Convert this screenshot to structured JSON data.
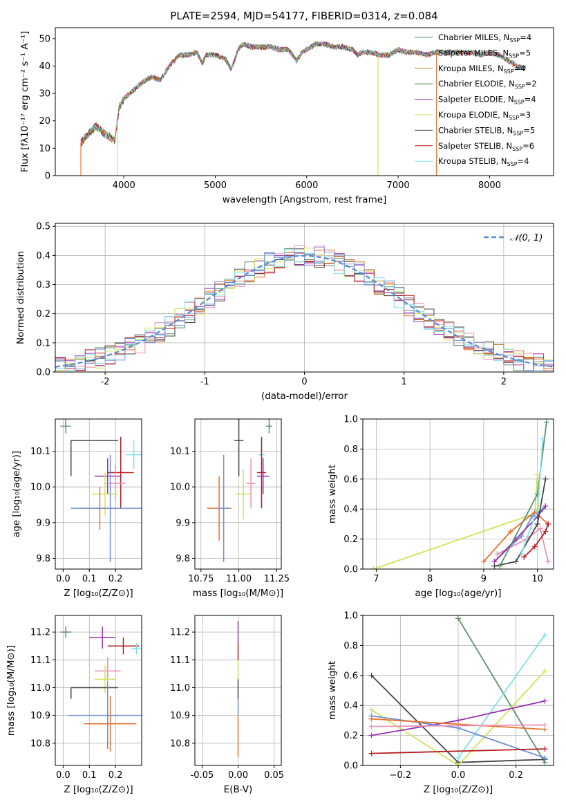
{
  "figure": {
    "title": "PLATE=2594, MJD=54177, FIBERID=0314, z=0.084"
  },
  "colors": {
    "Chabrier MILES": "#5d8f6b",
    "Salpeter MILES": "#9b59b6",
    "Kroupa MILES": "#c87f1a",
    "Chabrier ELODIE": "#3b7a3b",
    "Salpeter ELODIE": "#9b30b0",
    "Kroupa ELODIE": "#d4e157",
    "Chabrier STELIB": "#444444",
    "Salpeter STELIB": "#b71c1c",
    "Kroupa STELIB": "#80deea",
    "gaussian": "#5b8ed6",
    "orange": "#e8712a",
    "pink": "#e88fb8",
    "blue": "#6f8fd8"
  },
  "chart_data": [
    {
      "id": "spectrum",
      "type": "line",
      "xlabel": "wavelength [Angstrom, rest frame]",
      "ylabel": "Flux [fλ10⁻¹⁷ erg cm⁻² s⁻¹ A⁻¹]",
      "xlim": [
        3250,
        8700
      ],
      "ylim": [
        0,
        54
      ],
      "xticks": [
        4000,
        5000,
        6000,
        7000,
        8000
      ],
      "yticks": [
        0,
        10,
        20,
        30,
        40,
        50
      ],
      "grid": false,
      "legend_position": "top-right",
      "spectrum_knots": {
        "x": [
          3530,
          3600,
          3700,
          3800,
          3900,
          3950,
          4000,
          4100,
          4200,
          4300,
          4400,
          4500,
          4600,
          4700,
          4800,
          4860,
          4900,
          5000,
          5100,
          5175,
          5250,
          5300,
          5400,
          5500,
          5600,
          5700,
          5800,
          5890,
          5950,
          6000,
          6100,
          6200,
          6300,
          6400,
          6500,
          6563,
          6600,
          6700,
          6800,
          6900,
          7000,
          7100,
          7200,
          7300,
          7400,
          7500,
          7600,
          7700,
          7800,
          7900,
          8000,
          8100,
          8200,
          8300,
          8400
        ],
        "y": [
          12,
          15,
          18,
          15,
          13,
          25,
          28,
          31,
          34,
          36,
          35,
          40,
          44,
          44,
          45,
          41,
          44,
          44,
          43,
          39,
          46,
          48,
          47,
          47,
          47,
          46,
          46,
          42,
          45,
          46,
          48,
          48,
          47,
          47,
          46,
          44,
          45,
          45,
          44,
          44,
          46,
          45,
          45,
          44,
          45,
          45,
          45,
          45,
          45,
          44,
          45,
          44,
          42,
          40,
          39
        ]
      },
      "series": [
        {
          "name": "Chabrier MILES, Nₛₛₚ=4",
          "label": "Chabrier MILES, N",
          "nssp": "4"
        },
        {
          "name": "Salpeter MILES, Nₛₛₚ=5",
          "label": "Salpeter MILES, N",
          "nssp": "5"
        },
        {
          "name": "Kroupa MILES, Nₛₛₚ=4",
          "label": "Kroupa MILES, N",
          "nssp": "4"
        },
        {
          "name": "Chabrier ELODIE, Nₛₛₚ=2",
          "label": "Chabrier ELODIE, N",
          "nssp": "2"
        },
        {
          "name": "Salpeter ELODIE, Nₛₛₚ=4",
          "label": "Salpeter ELODIE, N",
          "nssp": "4"
        },
        {
          "name": "Kroupa ELODIE, Nₛₛₚ=3",
          "label": "Kroupa ELODIE, N",
          "nssp": "3"
        },
        {
          "name": "Chabrier STELIB, Nₛₛₚ=5",
          "label": "Chabrier STELIB, N",
          "nssp": "5"
        },
        {
          "name": "Salpeter STELIB, Nₛₛₚ=6",
          "label": "Salpeter STELIB, N",
          "nssp": "6"
        },
        {
          "name": "Kroupa STELIB, Nₛₛₚ=4",
          "label": "Kroupa STELIB, N",
          "nssp": "4"
        }
      ],
      "nssp_subscript": "SSP",
      "edge_drops": [
        {
          "x": 3530,
          "color": "orange"
        },
        {
          "x": 3930,
          "color": "Kroupa ELODIE"
        },
        {
          "x": 6780,
          "color": "Kroupa ELODIE"
        },
        {
          "x": 7420,
          "color": "orange"
        }
      ]
    },
    {
      "id": "residuals",
      "type": "step",
      "xlabel": "(data-model)/error",
      "ylabel": "Normed distribution",
      "xlim": [
        -2.5,
        2.5
      ],
      "ylim": [
        0,
        0.51
      ],
      "xticks": [
        -2,
        -1,
        0,
        1,
        2
      ],
      "yticks": [
        0.0,
        0.1,
        0.2,
        0.3,
        0.4,
        0.5
      ],
      "grid": true,
      "legend": "𝒩(0, 1)",
      "legend_position": "top-right",
      "bin_width": 0.1,
      "series_colors": [
        "Chabrier MILES",
        "orange",
        "Chabrier STELIB",
        "Salpeter ELODIE",
        "pink",
        "Kroupa ELODIE",
        "Salpeter STELIB",
        "Kroupa STELIB",
        "blue"
      ]
    },
    {
      "id": "age_vs_Z",
      "type": "errorbar",
      "xlabel": "Z [log₁₀(Z/Z⊙)]",
      "ylabel": "age  [log₁₀(age/yr)]",
      "xlim": [
        -0.03,
        0.3
      ],
      "ylim": [
        9.77,
        10.19
      ],
      "xticks": [
        0.0,
        0.1,
        0.2
      ],
      "yticks": [
        9.8,
        9.9,
        10.0,
        10.1
      ],
      "points": [
        {
          "x": 0.01,
          "y": 10.17,
          "xerr": 0.02,
          "yerr": 0.02,
          "color": "Chabrier MILES"
        },
        {
          "x": 0.03,
          "y": 10.13,
          "xerr": [
            0,
            0.18
          ],
          "yerr": [
            0.1,
            0
          ],
          "color": "Chabrier STELIB"
        },
        {
          "x": 0.17,
          "y": 10.03,
          "xerr": 0.05,
          "yerr": 0.05,
          "color": "Salpeter ELODIE"
        },
        {
          "x": 0.22,
          "y": 10.04,
          "xerr": 0.05,
          "yerr": 0.1,
          "color": "Salpeter STELIB"
        },
        {
          "x": 0.2,
          "y": 10.01,
          "xerr": 0.04,
          "yerr": 0.05,
          "color": "pink"
        },
        {
          "x": 0.27,
          "y": 10.09,
          "xerr": 0.03,
          "yerr": 0.04,
          "color": "Kroupa STELIB"
        },
        {
          "x": 0.16,
          "y": 9.98,
          "xerr": 0.05,
          "yerr": 0.06,
          "color": "Kroupa ELODIE"
        },
        {
          "x": 0.14,
          "y": 9.94,
          "xerr": 0.07,
          "yerr": 0.06,
          "color": "orange"
        },
        {
          "x": 0.18,
          "y": 9.94,
          "xerr": 0.15,
          "yerr": 0.15,
          "color": "blue"
        }
      ]
    },
    {
      "id": "age_vs_mass",
      "type": "errorbar",
      "xlabel": "mass [log₁₀(M/M⊙)]",
      "ylabel": "",
      "xlim": [
        10.71,
        11.28
      ],
      "ylim": [
        9.77,
        10.19
      ],
      "xticks": [
        10.75,
        11.0,
        11.25
      ],
      "yticks": [
        9.8,
        9.9,
        10.0,
        10.1
      ],
      "points": [
        {
          "x": 11.2,
          "y": 10.17,
          "xerr": 0.02,
          "yerr": 0.02,
          "color": "Chabrier MILES"
        },
        {
          "x": 11.0,
          "y": 10.13,
          "xerr": 0.03,
          "yerr": 0.1,
          "color": "Chabrier STELIB"
        },
        {
          "x": 11.15,
          "y": 10.09,
          "xerr": 0.02,
          "yerr": 0.04,
          "color": "Kroupa STELIB"
        },
        {
          "x": 11.15,
          "y": 10.04,
          "xerr": 0.03,
          "yerr": 0.1,
          "color": "Salpeter STELIB"
        },
        {
          "x": 11.16,
          "y": 10.03,
          "xerr": 0.04,
          "yerr": 0.05,
          "color": "Salpeter ELODIE"
        },
        {
          "x": 11.08,
          "y": 10.01,
          "xerr": 0.03,
          "yerr": 0.07,
          "color": "pink"
        },
        {
          "x": 11.03,
          "y": 9.98,
          "xerr": 0.05,
          "yerr": 0.07,
          "color": "Kroupa ELODIE"
        },
        {
          "x": 10.87,
          "y": 9.94,
          "xerr": 0.08,
          "yerr": 0.09,
          "color": "orange"
        },
        {
          "x": 10.9,
          "y": 9.94,
          "xerr": 0.04,
          "yerr": 0.15,
          "color": "blue"
        }
      ]
    },
    {
      "id": "weight_vs_age",
      "type": "line",
      "xlabel": "age  [log₁₀(age/yr)]",
      "ylabel": "mass weight",
      "xlim": [
        6.75,
        10.3
      ],
      "ylim": [
        0,
        1.0
      ],
      "xticks": [
        7,
        8,
        9,
        10
      ],
      "yticks": [
        0.0,
        0.2,
        0.4,
        0.6,
        0.8,
        1.0
      ],
      "grid": true,
      "series": [
        {
          "color": "Kroupa ELODIE",
          "x": [
            6.95,
            9.95,
            10.0,
            10.02
          ],
          "y": [
            0.0,
            0.37,
            0.63,
            0.35
          ]
        },
        {
          "color": "orange",
          "x": [
            9.0,
            9.5,
            9.95,
            10.2
          ],
          "y": [
            0.05,
            0.25,
            0.38,
            0.3
          ]
        },
        {
          "color": "blue",
          "x": [
            9.2,
            9.7,
            9.9,
            10.1
          ],
          "y": [
            0.05,
            0.22,
            0.35,
            0.4
          ]
        },
        {
          "color": "pink",
          "x": [
            9.25,
            9.8,
            10.05,
            10.2
          ],
          "y": [
            0.1,
            0.2,
            0.27,
            0.05
          ]
        },
        {
          "color": "Salpeter ELODIE",
          "x": [
            9.2,
            9.6,
            10.0,
            10.15
          ],
          "y": [
            0.05,
            0.2,
            0.35,
            0.42
          ]
        },
        {
          "color": "Salpeter STELIB",
          "x": [
            9.75,
            9.95,
            10.15,
            10.2
          ],
          "y": [
            0.08,
            0.15,
            0.25,
            0.3
          ]
        },
        {
          "color": "Chabrier STELIB",
          "x": [
            9.2,
            9.6,
            10.0,
            10.15
          ],
          "y": [
            0.02,
            0.05,
            0.3,
            0.6
          ]
        },
        {
          "color": "Chabrier MILES",
          "x": [
            9.3,
            10.0,
            10.17
          ],
          "y": [
            0.02,
            0.5,
            0.98
          ]
        },
        {
          "color": "Kroupa STELIB",
          "x": [
            9.7,
            10.0,
            10.1
          ],
          "y": [
            0.1,
            0.4,
            0.87
          ]
        }
      ]
    },
    {
      "id": "mass_vs_Z",
      "type": "errorbar",
      "xlabel": "Z [log₁₀(Z/Z⊙)]",
      "ylabel": "mass [log₁₀(M/M⊙)]",
      "xlim": [
        -0.03,
        0.3
      ],
      "ylim": [
        10.72,
        11.26
      ],
      "xticks": [
        0.0,
        0.1,
        0.2
      ],
      "yticks": [
        10.8,
        10.9,
        11.0,
        11.1,
        11.2
      ],
      "points": [
        {
          "x": 0.01,
          "y": 11.2,
          "xerr": 0.02,
          "yerr": 0.02,
          "color": "Chabrier MILES"
        },
        {
          "x": 0.15,
          "y": 11.18,
          "xerr": 0.05,
          "yerr": 0.04,
          "color": "Salpeter ELODIE"
        },
        {
          "x": 0.23,
          "y": 11.15,
          "xerr": 0.06,
          "yerr": 0.03,
          "color": "Salpeter STELIB"
        },
        {
          "x": 0.28,
          "y": 11.14,
          "xerr": 0.02,
          "yerr": 0.02,
          "color": "Kroupa STELIB"
        },
        {
          "x": 0.17,
          "y": 11.06,
          "xerr": 0.05,
          "yerr": 0.05,
          "color": "pink"
        },
        {
          "x": 0.16,
          "y": 11.03,
          "xerr": 0.04,
          "yerr": 0.05,
          "color": "Kroupa ELODIE"
        },
        {
          "x": 0.03,
          "y": 11.0,
          "xerr": [
            0,
            0.18
          ],
          "yerr": [
            0.04,
            0
          ],
          "color": "Chabrier STELIB"
        },
        {
          "x": 0.17,
          "y": 10.9,
          "xerr": 0.15,
          "yerr": 0.12,
          "color": "blue"
        },
        {
          "x": 0.18,
          "y": 10.87,
          "xerr": 0.1,
          "yerr": 0.1,
          "color": "orange"
        }
      ]
    },
    {
      "id": "mass_vs_EBV",
      "type": "errorbar",
      "xlabel": "E(B-V)",
      "ylabel": "",
      "xlim": [
        -0.06,
        0.06
      ],
      "ylim": [
        10.72,
        11.26
      ],
      "xticks": [
        -0.05,
        0.0,
        0.05
      ],
      "yticks": [
        10.8,
        10.9,
        11.0,
        11.1,
        11.2
      ],
      "segments": [
        {
          "y0": 11.24,
          "y1": 11.16,
          "color": "Salpeter ELODIE"
        },
        {
          "y0": 11.16,
          "y1": 11.1,
          "color": "Salpeter STELIB"
        },
        {
          "y0": 11.1,
          "y1": 11.03,
          "color": "Kroupa ELODIE"
        },
        {
          "y0": 11.03,
          "y1": 10.96,
          "color": "Chabrier STELIB"
        },
        {
          "y0": 10.96,
          "y1": 10.9,
          "color": "blue"
        },
        {
          "y0": 10.9,
          "y1": 10.75,
          "color": "orange"
        }
      ]
    },
    {
      "id": "weight_vs_Z",
      "type": "line",
      "xlabel": "Z [log₁₀(Z/Z⊙)]",
      "ylabel": "mass weight",
      "xlim": [
        -0.33,
        0.33
      ],
      "ylim": [
        0,
        1.0
      ],
      "xticks": [
        -0.2,
        0.0,
        0.2
      ],
      "yticks": [
        0.0,
        0.2,
        0.4,
        0.6,
        0.8,
        1.0
      ],
      "grid": true,
      "series": [
        {
          "color": "Chabrier MILES",
          "x": [
            0.0,
            0.3
          ],
          "y": [
            0.98,
            0.02
          ]
        },
        {
          "color": "Chabrier STELIB",
          "x": [
            -0.3,
            0.0,
            0.3
          ],
          "y": [
            0.6,
            0.02,
            0.04
          ]
        },
        {
          "color": "Kroupa ELODIE",
          "x": [
            -0.3,
            0.0,
            0.3
          ],
          "y": [
            0.37,
            0.0,
            0.63
          ]
        },
        {
          "color": "Kroupa STELIB",
          "x": [
            0.0,
            0.3
          ],
          "y": [
            0.05,
            0.87
          ]
        },
        {
          "color": "Salpeter ELODIE",
          "x": [
            -0.3,
            0.0,
            0.3
          ],
          "y": [
            0.2,
            0.3,
            0.43
          ]
        },
        {
          "color": "blue",
          "x": [
            -0.3,
            0.0,
            0.3
          ],
          "y": [
            0.33,
            0.25,
            0.05
          ]
        },
        {
          "color": "orange",
          "x": [
            -0.3,
            0.3
          ],
          "y": [
            0.31,
            0.24
          ]
        },
        {
          "color": "pink",
          "x": [
            -0.3,
            0.3
          ],
          "y": [
            0.26,
            0.27
          ]
        },
        {
          "color": "Salpeter STELIB",
          "x": [
            -0.3,
            0.3
          ],
          "y": [
            0.08,
            0.11
          ]
        }
      ]
    }
  ]
}
